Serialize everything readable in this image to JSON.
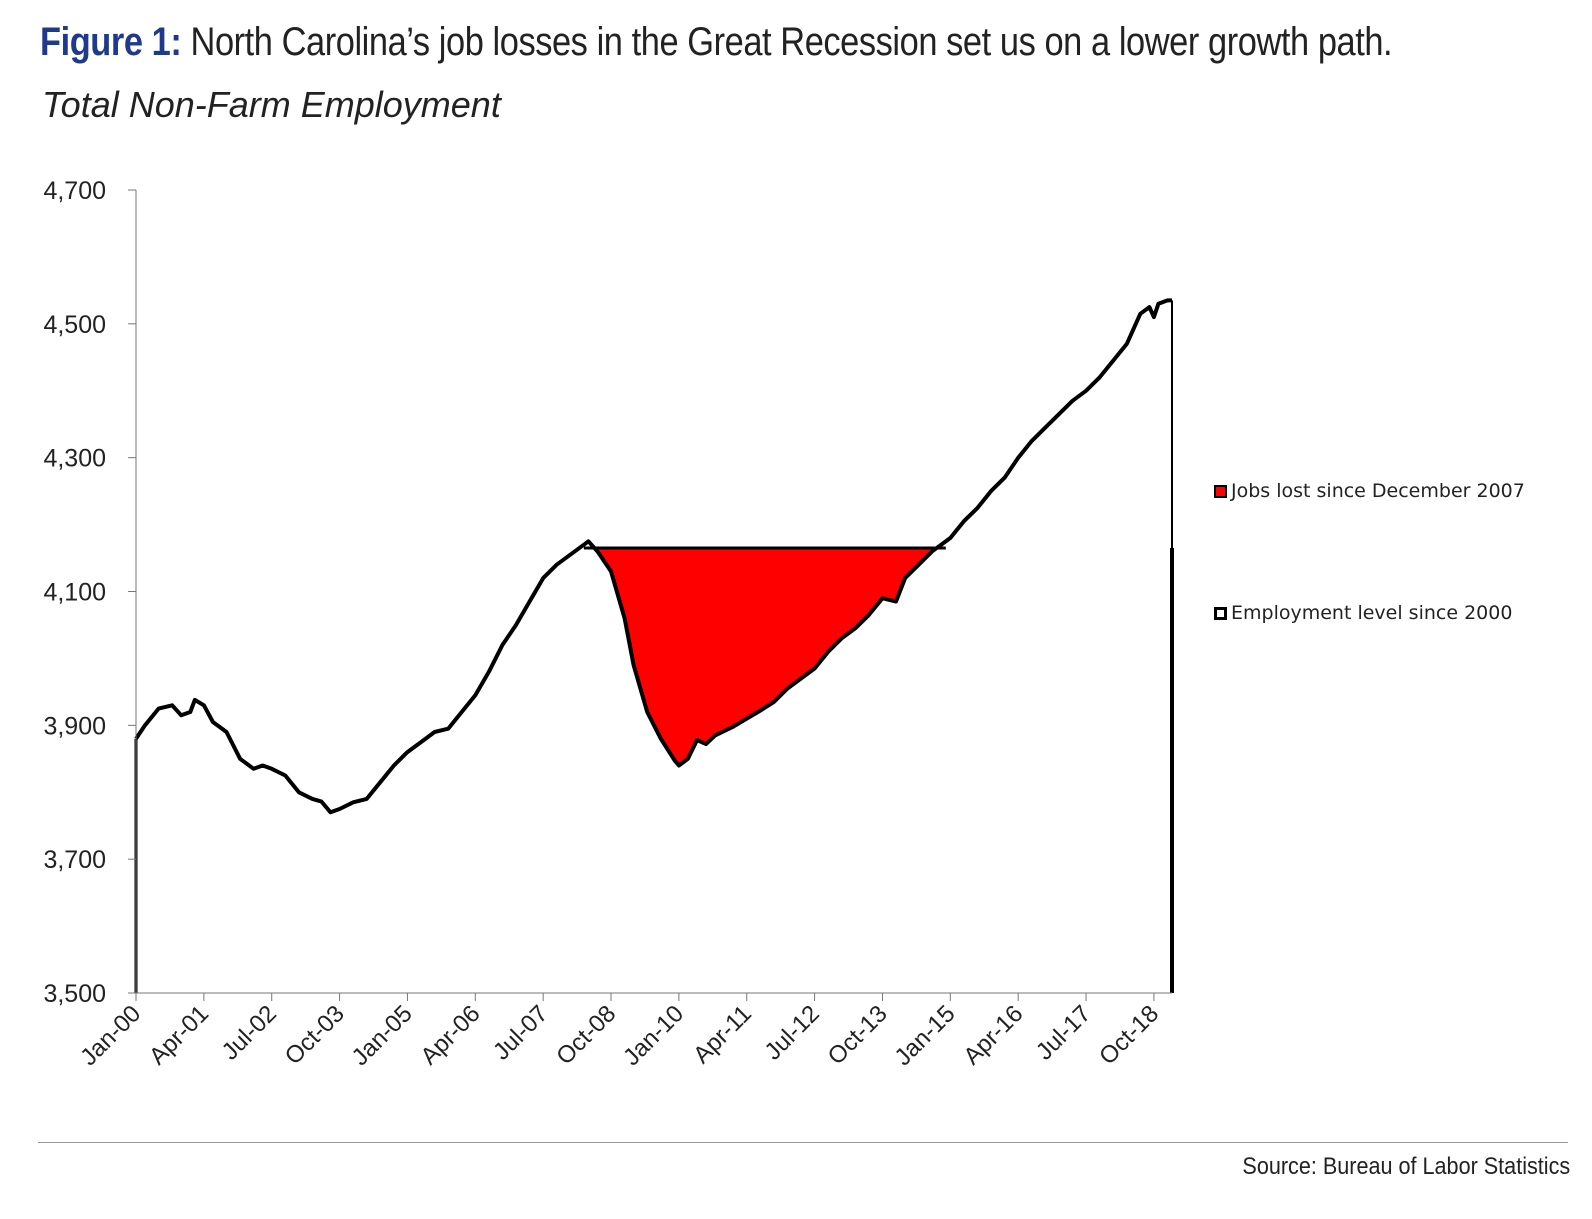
{
  "header": {
    "figure_label": "Figure 1:",
    "title": "North Carolina’s job losses in the Great Recession set us on a lower growth path.",
    "subtitle": "Total Non-Farm Employment"
  },
  "source": "Source: Bureau of Labor Statistics",
  "colors": {
    "line": "#000000",
    "fill": "#ff0000",
    "title_accent": "#1f3a8a"
  },
  "chart_data": {
    "type": "area",
    "title": "Total Non-Farm Employment",
    "xlabel": "",
    "ylabel": "",
    "ylim": [
      3500,
      4700
    ],
    "yticks": [
      3500,
      3700,
      3900,
      4100,
      4300,
      4500,
      4700
    ],
    "ytick_labels": [
      "3,500",
      "3,700",
      "3,900",
      "4,100",
      "4,300",
      "4,500",
      "4,700"
    ],
    "xticks": [
      "Jan-00",
      "Apr-01",
      "Jul-02",
      "Oct-03",
      "Jan-05",
      "Apr-06",
      "Jul-07",
      "Oct-08",
      "Jan-10",
      "Apr-11",
      "Jul-12",
      "Oct-13",
      "Jan-15",
      "Apr-16",
      "Jul-17",
      "Oct-18"
    ],
    "x_start": "Jan-00",
    "x_end": "Feb-19",
    "grid": false,
    "legend_position": "right",
    "reference_level": 4165,
    "series": [
      {
        "name": "Employment level since 2000",
        "kind": "line",
        "points": [
          [
            "Jan-00",
            3880
          ],
          [
            "Mar-00",
            3900
          ],
          [
            "Jun-00",
            3925
          ],
          [
            "Sep-00",
            3930
          ],
          [
            "Nov-00",
            3915
          ],
          [
            "Jan-01",
            3920
          ],
          [
            "Feb-01",
            3938
          ],
          [
            "Apr-01",
            3930
          ],
          [
            "Jun-01",
            3905
          ],
          [
            "Sep-01",
            3890
          ],
          [
            "Dec-01",
            3850
          ],
          [
            "Mar-02",
            3835
          ],
          [
            "May-02",
            3840
          ],
          [
            "Jul-02",
            3835
          ],
          [
            "Oct-02",
            3825
          ],
          [
            "Jan-03",
            3800
          ],
          [
            "Apr-03",
            3790
          ],
          [
            "Jun-03",
            3786
          ],
          [
            "Aug-03",
            3770
          ],
          [
            "Oct-03",
            3775
          ],
          [
            "Jan-04",
            3785
          ],
          [
            "Apr-04",
            3790
          ],
          [
            "Jul-04",
            3815
          ],
          [
            "Oct-04",
            3840
          ],
          [
            "Jan-05",
            3860
          ],
          [
            "Apr-05",
            3875
          ],
          [
            "Jul-05",
            3890
          ],
          [
            "Oct-05",
            3895
          ],
          [
            "Jan-06",
            3920
          ],
          [
            "Apr-06",
            3945
          ],
          [
            "Jul-06",
            3980
          ],
          [
            "Oct-06",
            4020
          ],
          [
            "Jan-07",
            4050
          ],
          [
            "Apr-07",
            4085
          ],
          [
            "Jul-07",
            4120
          ],
          [
            "Oct-07",
            4140
          ],
          [
            "Jan-08",
            4155
          ],
          [
            "Apr-08",
            4170
          ],
          [
            "May-08",
            4175
          ],
          [
            "Jul-08",
            4160
          ],
          [
            "Oct-08",
            4130
          ],
          [
            "Jan-09",
            4060
          ],
          [
            "Mar-09",
            3990
          ],
          [
            "Jun-09",
            3920
          ],
          [
            "Sep-09",
            3880
          ],
          [
            "Dec-09",
            3848
          ],
          [
            "Jan-10",
            3840
          ],
          [
            "Mar-10",
            3850
          ],
          [
            "May-10",
            3878
          ],
          [
            "Jul-10",
            3872
          ],
          [
            "Sep-10",
            3885
          ],
          [
            "Jan-11",
            3898
          ],
          [
            "Apr-11",
            3910
          ],
          [
            "Jul-11",
            3922
          ],
          [
            "Oct-11",
            3935
          ],
          [
            "Jan-12",
            3955
          ],
          [
            "Apr-12",
            3970
          ],
          [
            "Jul-12",
            3985
          ],
          [
            "Oct-12",
            4010
          ],
          [
            "Jan-13",
            4030
          ],
          [
            "Apr-13",
            4045
          ],
          [
            "Jul-13",
            4065
          ],
          [
            "Oct-13",
            4090
          ],
          [
            "Jan-14",
            4085
          ],
          [
            "Mar-14",
            4120
          ],
          [
            "Jun-14",
            4140
          ],
          [
            "Sep-14",
            4160
          ],
          [
            "Jan-15",
            4180
          ],
          [
            "Apr-15",
            4205
          ],
          [
            "Jul-15",
            4225
          ],
          [
            "Oct-15",
            4250
          ],
          [
            "Jan-16",
            4270
          ],
          [
            "Apr-16",
            4300
          ],
          [
            "Jul-16",
            4325
          ],
          [
            "Oct-16",
            4345
          ],
          [
            "Jan-17",
            4365
          ],
          [
            "Apr-17",
            4385
          ],
          [
            "Jul-17",
            4400
          ],
          [
            "Oct-17",
            4420
          ],
          [
            "Jan-18",
            4445
          ],
          [
            "Apr-18",
            4470
          ],
          [
            "Jul-18",
            4515
          ],
          [
            "Sep-18",
            4525
          ],
          [
            "Oct-18",
            4510
          ],
          [
            "Nov-18",
            4530
          ],
          [
            "Jan-19",
            4535
          ],
          [
            "Feb-19",
            4535
          ]
        ]
      },
      {
        "name": "Jobs lost since December 2007",
        "kind": "fill",
        "from": "Jun-08",
        "to": "Dec-14"
      }
    ]
  }
}
